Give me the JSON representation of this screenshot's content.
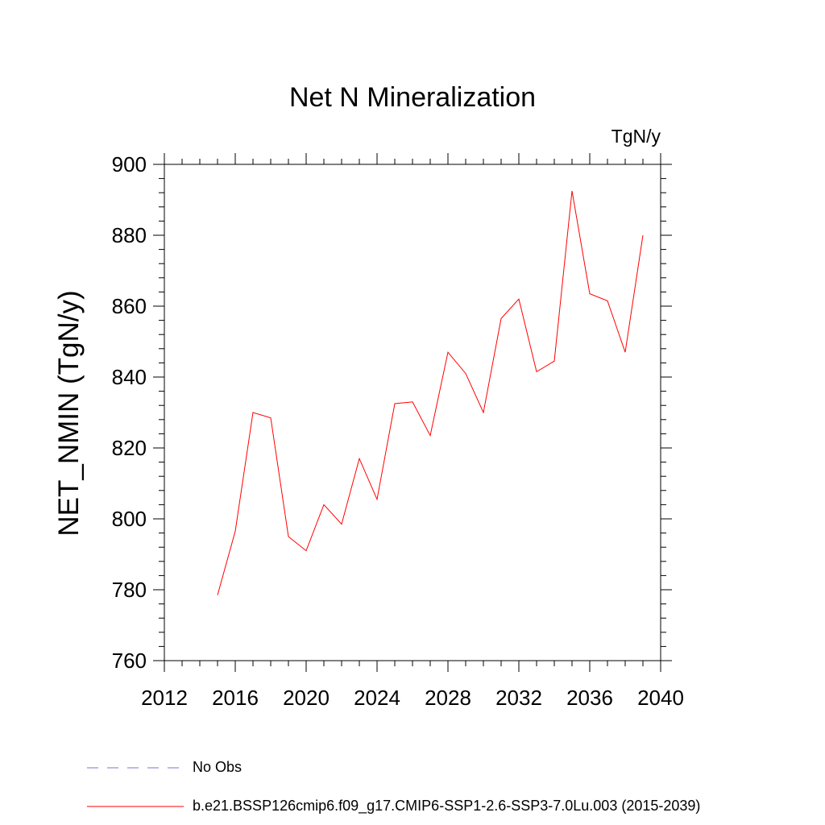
{
  "chart_data": {
    "type": "line",
    "title": "Net N Mineralization",
    "units_label": "TgN/y",
    "ylabel": "NET_NMIN  (TgN/y)",
    "xlabel": "",
    "xlim": [
      2012,
      2040
    ],
    "ylim": [
      760,
      900
    ],
    "x_ticks": [
      2012,
      2016,
      2020,
      2024,
      2028,
      2032,
      2036,
      2040
    ],
    "y_ticks": [
      760,
      780,
      800,
      820,
      840,
      860,
      880,
      900
    ],
    "grid": false,
    "legend_position": "bottom",
    "series": [
      {
        "name": "b.e21.BSSP126cmip6.f09_g17.CMIP6-SSP1-2.6-SSP3-7.0Lu.003 (2015-2039)",
        "color": "#ff0000",
        "style": "solid",
        "x": [
          2015,
          2016,
          2017,
          2018,
          2019,
          2020,
          2021,
          2022,
          2023,
          2024,
          2025,
          2026,
          2027,
          2028,
          2029,
          2030,
          2031,
          2032,
          2033,
          2034,
          2035,
          2036,
          2037,
          2038,
          2039
        ],
        "values": [
          778.5,
          796.5,
          830,
          828.5,
          795,
          791,
          804,
          798.5,
          817,
          805.5,
          832.5,
          833,
          823.5,
          847,
          841,
          830,
          856.5,
          862,
          841.5,
          844.5,
          892.5,
          863.5,
          861.5,
          847,
          880
        ]
      },
      {
        "name": "No Obs",
        "color": "#7777cc",
        "style": "dashed",
        "x": [],
        "values": []
      }
    ]
  }
}
